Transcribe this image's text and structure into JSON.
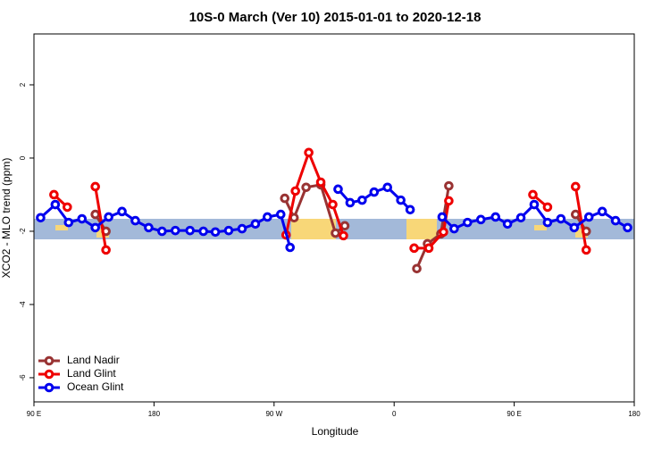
{
  "chart_data": {
    "type": "line",
    "title": "10S-0 March (Ver 10)   2015-01-01 to 2020-12-18",
    "x_label": "Longitude",
    "y_label": "XCO2 - MLO trend (ppm)",
    "xlim": [
      90,
      540
    ],
    "ylim": [
      -6.66,
      3.39
    ],
    "xticks": [
      {
        "value": 90,
        "label": "90 E"
      },
      180,
      {
        "value": 270,
        "label": "90 W"
      },
      {
        "value": 360,
        "label": "0"
      },
      {
        "value": 450,
        "label": "90 E"
      },
      {
        "value": 540,
        "label": "180"
      }
    ],
    "yticks": [
      -6,
      -4,
      -2,
      0,
      2
    ],
    "legend": "bottom-left",
    "series": [
      {
        "name": "Land Nadir",
        "color": "#993333",
        "x": [
          136,
          144,
          200,
          278,
          285,
          294,
          305,
          316,
          323,
          350,
          377,
          385,
          395,
          401,
          450,
          496,
          504
        ],
        "values": [
          -1.54,
          -2.0,
          null,
          -1.1,
          -1.63,
          -0.8,
          -0.73,
          -2.05,
          -1.85,
          null,
          -3.02,
          -2.34,
          -2.07,
          -0.76,
          null,
          -1.54,
          -2.0
        ]
      },
      {
        "name": "Land Glint",
        "color": "#ee0000",
        "x": [
          105,
          115,
          125,
          136,
          144,
          200,
          279,
          286,
          296,
          305,
          314,
          322,
          350,
          375,
          386,
          397,
          401,
          430,
          464,
          475,
          485,
          496,
          504
        ],
        "values": [
          -1.0,
          -1.34,
          null,
          -0.78,
          -2.51,
          null,
          -2.1,
          -0.9,
          0.15,
          -0.66,
          -1.27,
          -2.12,
          null,
          -2.46,
          -2.46,
          -2.02,
          -1.17,
          null,
          -1.0,
          -1.34,
          null,
          -0.78,
          -2.51
        ]
      },
      {
        "name": "Ocean Glint",
        "color": "#0000ee",
        "x": [
          95,
          106,
          116,
          126,
          136,
          146,
          156,
          166,
          176,
          186,
          196,
          207,
          217,
          226,
          236,
          246,
          256,
          265,
          275,
          282,
          300,
          318,
          327,
          336,
          345,
          355,
          365,
          372,
          385,
          396,
          405,
          415,
          425,
          436,
          445,
          455,
          465,
          475,
          485,
          495,
          506,
          516,
          526,
          535
        ],
        "values": [
          -1.63,
          -1.27,
          -1.76,
          -1.66,
          -1.9,
          -1.61,
          -1.46,
          -1.71,
          -1.9,
          -2.0,
          -1.98,
          -1.98,
          -2.0,
          -2.02,
          -1.98,
          -1.93,
          -1.8,
          -1.61,
          -1.54,
          -2.44,
          null,
          -0.85,
          -1.22,
          -1.15,
          -0.93,
          -0.8,
          -1.15,
          -1.41,
          null,
          -1.61,
          -1.93,
          -1.76,
          -1.68,
          -1.61,
          -1.8,
          -1.63,
          -1.27,
          -1.76,
          -1.66,
          -1.9,
          -1.61,
          -1.46,
          -1.71,
          -1.9
        ]
      }
    ]
  }
}
